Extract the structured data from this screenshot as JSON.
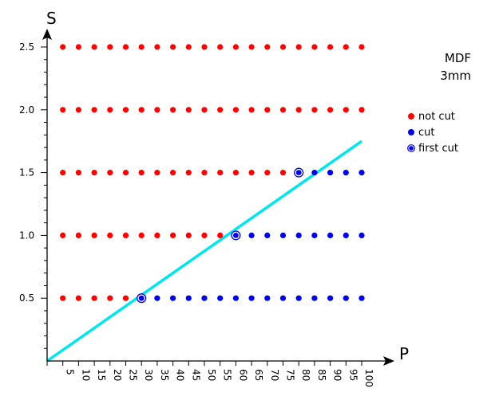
{
  "chart_data": {
    "type": "scatter",
    "title": "",
    "xlabel": "P",
    "ylabel": "S",
    "x_ticks": [
      5,
      10,
      15,
      20,
      25,
      30,
      35,
      40,
      45,
      50,
      55,
      60,
      65,
      70,
      75,
      80,
      85,
      90,
      95,
      100
    ],
    "y_ticks": [
      "0.5",
      "1.0",
      "1.5",
      "2.0",
      "2.5"
    ],
    "xlim": [
      0,
      100
    ],
    "ylim": [
      0,
      2.5
    ],
    "grid": false,
    "legend_position": "right",
    "annotation": {
      "line1": "MDF",
      "line2": "3mm"
    },
    "series": [
      {
        "name": "not cut",
        "color": "#ff0000",
        "points": [
          [
            5,
            0.5
          ],
          [
            10,
            0.5
          ],
          [
            15,
            0.5
          ],
          [
            20,
            0.5
          ],
          [
            25,
            0.5
          ],
          [
            5,
            1.0
          ],
          [
            10,
            1.0
          ],
          [
            15,
            1.0
          ],
          [
            20,
            1.0
          ],
          [
            25,
            1.0
          ],
          [
            30,
            1.0
          ],
          [
            35,
            1.0
          ],
          [
            40,
            1.0
          ],
          [
            45,
            1.0
          ],
          [
            50,
            1.0
          ],
          [
            55,
            1.0
          ],
          [
            5,
            1.5
          ],
          [
            10,
            1.5
          ],
          [
            15,
            1.5
          ],
          [
            20,
            1.5
          ],
          [
            25,
            1.5
          ],
          [
            30,
            1.5
          ],
          [
            35,
            1.5
          ],
          [
            40,
            1.5
          ],
          [
            45,
            1.5
          ],
          [
            50,
            1.5
          ],
          [
            55,
            1.5
          ],
          [
            60,
            1.5
          ],
          [
            65,
            1.5
          ],
          [
            70,
            1.5
          ],
          [
            75,
            1.5
          ],
          [
            5,
            2.0
          ],
          [
            10,
            2.0
          ],
          [
            15,
            2.0
          ],
          [
            20,
            2.0
          ],
          [
            25,
            2.0
          ],
          [
            30,
            2.0
          ],
          [
            35,
            2.0
          ],
          [
            40,
            2.0
          ],
          [
            45,
            2.0
          ],
          [
            50,
            2.0
          ],
          [
            55,
            2.0
          ],
          [
            60,
            2.0
          ],
          [
            65,
            2.0
          ],
          [
            70,
            2.0
          ],
          [
            75,
            2.0
          ],
          [
            80,
            2.0
          ],
          [
            85,
            2.0
          ],
          [
            90,
            2.0
          ],
          [
            95,
            2.0
          ],
          [
            100,
            2.0
          ],
          [
            5,
            2.5
          ],
          [
            10,
            2.5
          ],
          [
            15,
            2.5
          ],
          [
            20,
            2.5
          ],
          [
            25,
            2.5
          ],
          [
            30,
            2.5
          ],
          [
            35,
            2.5
          ],
          [
            40,
            2.5
          ],
          [
            45,
            2.5
          ],
          [
            50,
            2.5
          ],
          [
            55,
            2.5
          ],
          [
            60,
            2.5
          ],
          [
            65,
            2.5
          ],
          [
            70,
            2.5
          ],
          [
            75,
            2.5
          ],
          [
            80,
            2.5
          ],
          [
            85,
            2.5
          ],
          [
            90,
            2.5
          ],
          [
            95,
            2.5
          ],
          [
            100,
            2.5
          ]
        ]
      },
      {
        "name": "cut",
        "color": "#0000e6",
        "points": [
          [
            35,
            0.5
          ],
          [
            40,
            0.5
          ],
          [
            45,
            0.5
          ],
          [
            50,
            0.5
          ],
          [
            55,
            0.5
          ],
          [
            60,
            0.5
          ],
          [
            65,
            0.5
          ],
          [
            70,
            0.5
          ],
          [
            75,
            0.5
          ],
          [
            80,
            0.5
          ],
          [
            85,
            0.5
          ],
          [
            90,
            0.5
          ],
          [
            95,
            0.5
          ],
          [
            100,
            0.5
          ],
          [
            65,
            1.0
          ],
          [
            70,
            1.0
          ],
          [
            75,
            1.0
          ],
          [
            80,
            1.0
          ],
          [
            85,
            1.0
          ],
          [
            90,
            1.0
          ],
          [
            95,
            1.0
          ],
          [
            100,
            1.0
          ],
          [
            85,
            1.5
          ],
          [
            90,
            1.5
          ],
          [
            95,
            1.5
          ],
          [
            100,
            1.5
          ]
        ]
      },
      {
        "name": "first cut",
        "color": "#0000e6",
        "points": [
          [
            30,
            0.5
          ],
          [
            60,
            1.0
          ],
          [
            80,
            1.5
          ]
        ]
      }
    ],
    "fit_line": {
      "color": "#00e5ee",
      "points": [
        [
          0,
          0
        ],
        [
          100,
          1.75
        ]
      ]
    }
  }
}
